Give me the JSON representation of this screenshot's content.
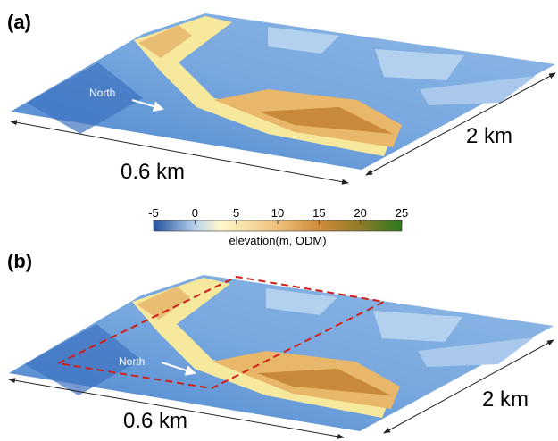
{
  "panels": [
    {
      "label": "(a)",
      "north": "North",
      "width_label": "0.6 km",
      "length_label": "2 km"
    },
    {
      "label": "(b)",
      "north": "North",
      "width_label": "0.6 km",
      "length_label": "2 km"
    }
  ],
  "colorbar": {
    "label": "elevation(m, ODM)",
    "lim": [
      -5,
      25
    ],
    "ticks": [
      -5,
      0,
      5,
      10,
      15,
      20,
      25
    ]
  }
}
